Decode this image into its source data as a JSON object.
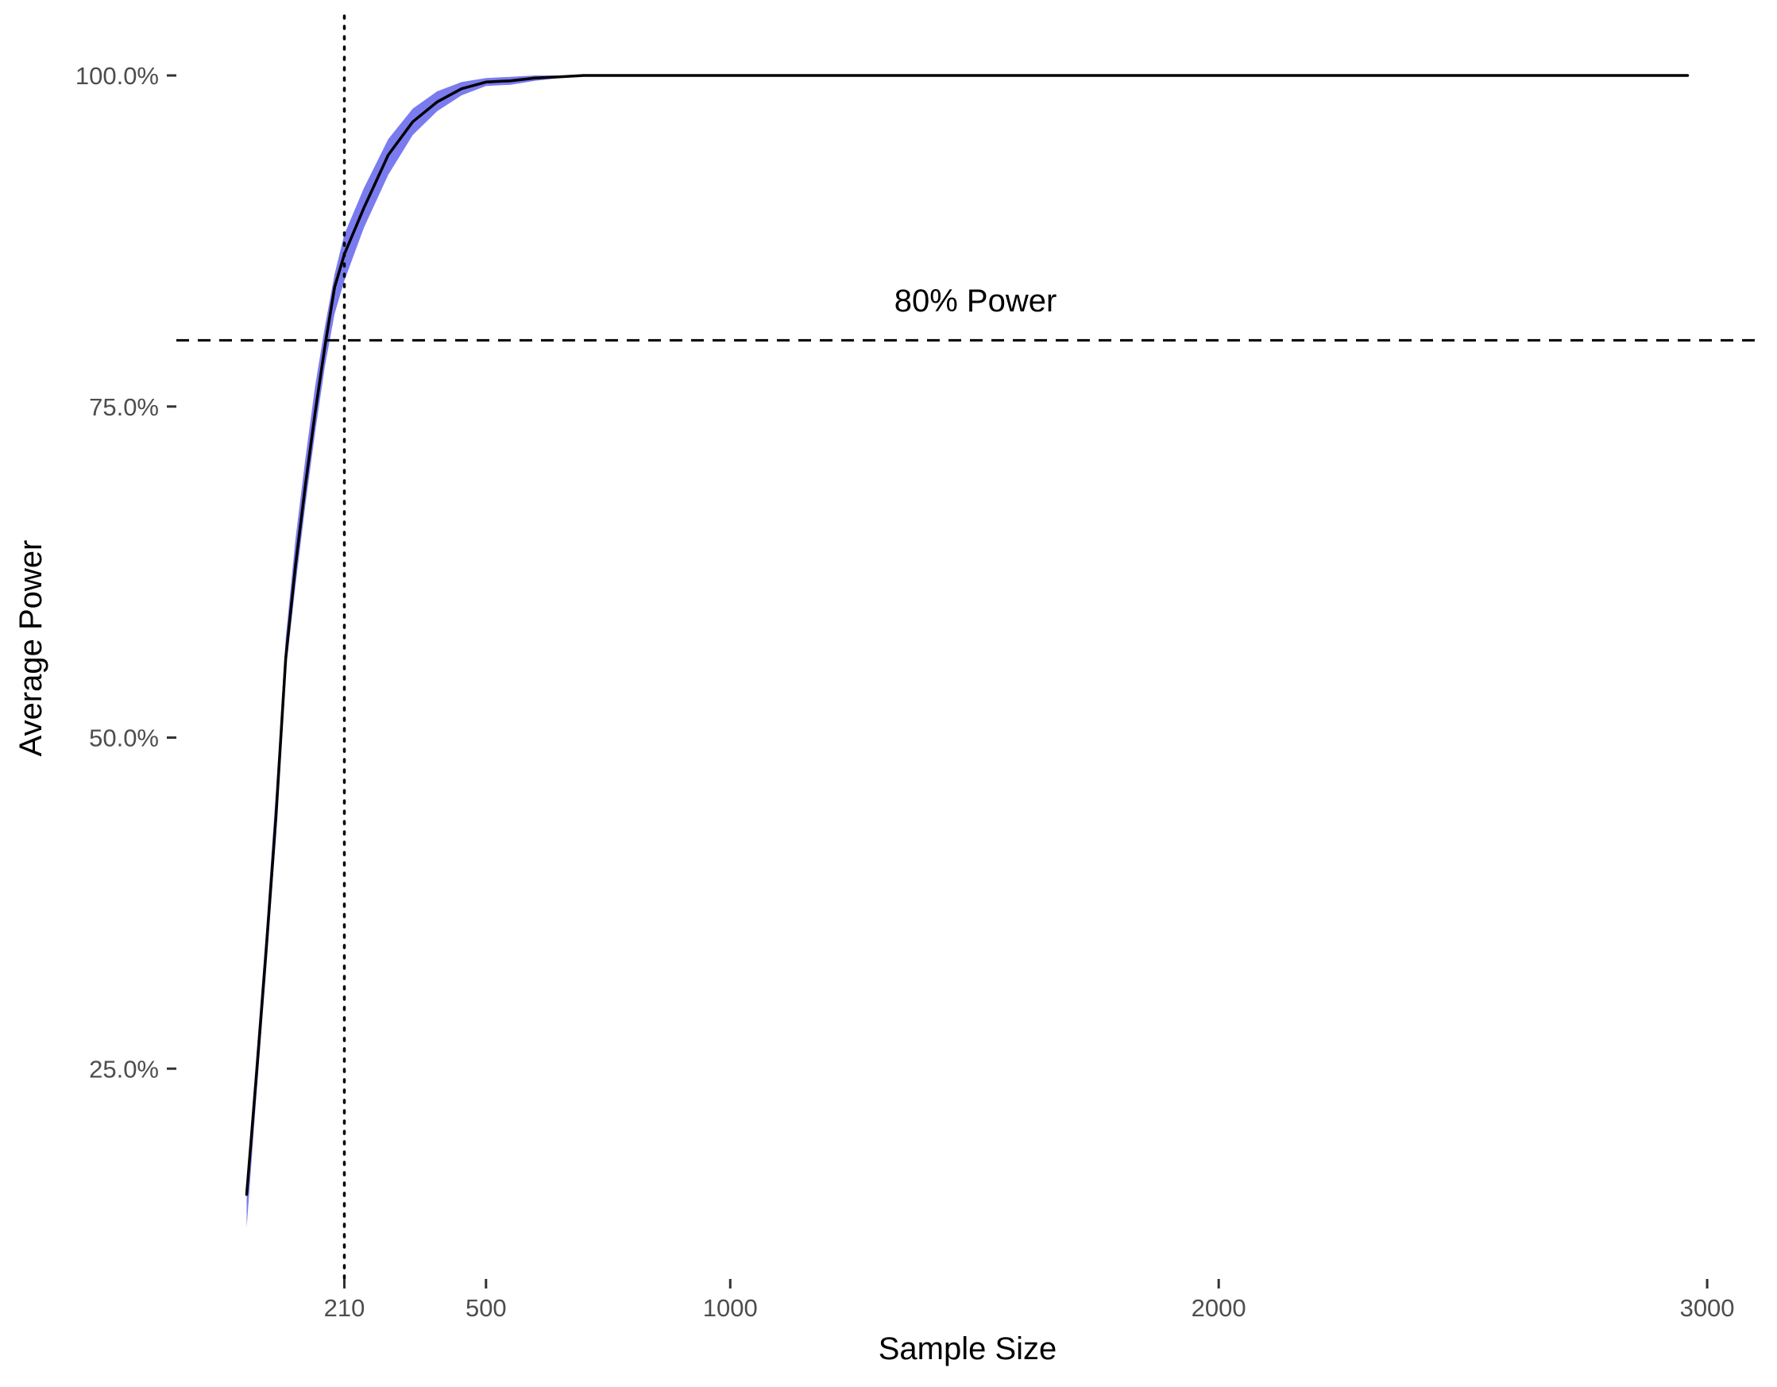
{
  "chart_data": {
    "type": "line",
    "title": "",
    "xlabel": "Sample Size",
    "ylabel": "Average Power",
    "xlim": [
      0,
      3000
    ],
    "ylim": [
      0.08,
      1.0
    ],
    "x_ticks": [
      {
        "value": 210,
        "label": "210"
      },
      {
        "value": 500,
        "label": "500"
      },
      {
        "value": 1000,
        "label": "1000"
      },
      {
        "value": 2000,
        "label": "2000"
      },
      {
        "value": 3000,
        "label": "3000"
      }
    ],
    "y_ticks": [
      {
        "value": 0.25,
        "label": "25.0%"
      },
      {
        "value": 0.5,
        "label": "50.0%"
      },
      {
        "value": 0.75,
        "label": "75.0%"
      },
      {
        "value": 1.0,
        "label": "100.0%"
      }
    ],
    "grid": false,
    "legend": "none",
    "series": [
      {
        "x": [
          10,
          30,
          50,
          70,
          90,
          110,
          130,
          150,
          170,
          190,
          210,
          250,
          300,
          350,
          400,
          450,
          500,
          550,
          600,
          650,
          700,
          800,
          1000,
          1500,
          2000,
          2500,
          2960
        ],
        "values": [
          0.155,
          0.245,
          0.34,
          0.44,
          0.56,
          0.63,
          0.69,
          0.745,
          0.795,
          0.84,
          0.865,
          0.9,
          0.94,
          0.965,
          0.98,
          0.99,
          0.995,
          0.996,
          0.998,
          0.999,
          1.0,
          1.0,
          1.0,
          1.0,
          1.0,
          1.0,
          1.0
        ],
        "lower": [
          0.13,
          0.23,
          0.325,
          0.425,
          0.55,
          0.615,
          0.675,
          0.73,
          0.78,
          0.82,
          0.845,
          0.885,
          0.925,
          0.955,
          0.973,
          0.985,
          0.992,
          0.993,
          0.996,
          0.998,
          1.0,
          1.0,
          1.0,
          1.0,
          1.0,
          1.0,
          1.0
        ],
        "upper": [
          0.165,
          0.26,
          0.355,
          0.46,
          0.575,
          0.65,
          0.71,
          0.765,
          0.81,
          0.85,
          0.88,
          0.915,
          0.952,
          0.975,
          0.988,
          0.995,
          0.998,
          0.999,
          1.0,
          1.0,
          1.0,
          1.0,
          1.0,
          1.0,
          1.0,
          1.0,
          1.0
        ]
      }
    ],
    "reference_lines": [
      {
        "orientation": "horizontal",
        "value": 0.8,
        "style": "dashed",
        "label": "80% Power"
      },
      {
        "orientation": "vertical",
        "value": 210,
        "style": "dotted",
        "label": ""
      }
    ],
    "colors": {
      "line": "#000000",
      "band": "#7b7bf0",
      "tick_text": "#4d4d4d",
      "tick_mark": "#333333"
    }
  }
}
